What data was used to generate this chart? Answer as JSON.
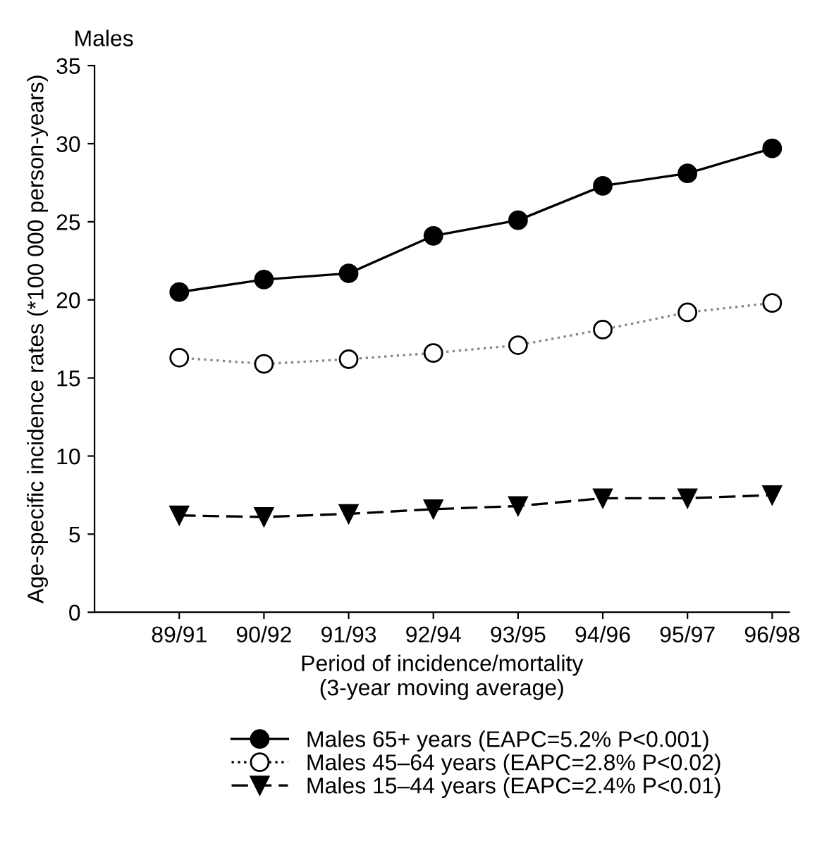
{
  "chart_data": {
    "type": "line",
    "title": "Males",
    "xlabel": "Period of incidence/mortality\n(3-year moving average)",
    "ylabel": "Age-specific incidence rates (*100 000 person-years)",
    "categories": [
      "89/91",
      "90/92",
      "91/93",
      "92/94",
      "93/95",
      "94/96",
      "95/97",
      "96/98"
    ],
    "series": [
      {
        "name": "Males 65+ years (EAPC=5.2% P<0.001)",
        "color": "#000000",
        "marker": "circle",
        "line_style": "solid",
        "values": [
          20.5,
          21.3,
          21.7,
          24.1,
          25.1,
          27.3,
          28.1,
          29.7
        ]
      },
      {
        "name": "Males 45–64 years (EAPC=2.8% P<0.02)",
        "color": "#ffffff",
        "marker": "circle",
        "line_style": "dotted",
        "values": [
          16.3,
          15.9,
          16.2,
          16.6,
          17.1,
          18.1,
          19.2,
          19.8
        ]
      },
      {
        "name": "Males 15–44 years (EAPC=2.4% P<0.01)",
        "color": "#000000",
        "marker": "triangle",
        "line_style": "dashed",
        "values": [
          6.2,
          6.1,
          6.3,
          6.6,
          6.8,
          7.3,
          7.3,
          7.5
        ]
      }
    ],
    "ylim": [
      0,
      35
    ],
    "yticks": [
      0,
      5,
      10,
      15,
      20,
      25,
      30,
      35
    ],
    "grid": false,
    "legend": "bottom"
  }
}
